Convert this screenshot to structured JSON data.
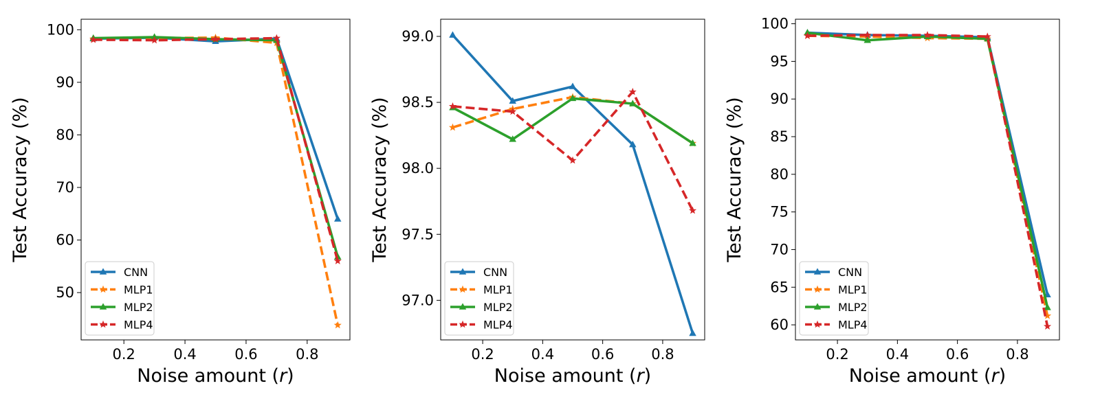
{
  "chart_data": [
    {
      "type": "line",
      "xlabel": "Noise amount (r)",
      "ylabel": "Test Accuracy (%)",
      "xlim": [
        0.06,
        0.94
      ],
      "ylim": [
        41.0,
        102.0
      ],
      "xticks": [
        0.2,
        0.4,
        0.6,
        0.8
      ],
      "xtick_labels": [
        "0.2",
        "0.4",
        "0.6",
        "0.8"
      ],
      "yticks": [
        50,
        60,
        70,
        80,
        90,
        100
      ],
      "ytick_labels": [
        "50",
        "60",
        "70",
        "80",
        "90",
        "100"
      ],
      "x": [
        0.1,
        0.3,
        0.5,
        0.7,
        0.9
      ],
      "grid": false,
      "legend": "lower left",
      "series": [
        {
          "name": "CNN",
          "values": [
            98.3,
            98.5,
            97.8,
            98.3,
            64.0
          ],
          "color": "#1f77b4",
          "linestyle": "solid",
          "marker": "triangle"
        },
        {
          "name": "MLP1",
          "values": [
            98.3,
            98.4,
            98.5,
            97.5,
            43.8
          ],
          "color": "#ff7f0e",
          "linestyle": "dashed",
          "marker": "star"
        },
        {
          "name": "MLP2",
          "values": [
            98.4,
            98.6,
            98.2,
            98.0,
            56.8
          ],
          "color": "#2ca02c",
          "linestyle": "solid",
          "marker": "triangle"
        },
        {
          "name": "MLP4",
          "values": [
            98.1,
            98.0,
            98.2,
            98.4,
            56.0
          ],
          "color": "#d62728",
          "linestyle": "dashed",
          "marker": "star"
        }
      ]
    },
    {
      "type": "line",
      "xlabel": "Noise amount (r)",
      "ylabel": "Test Accuracy (%)",
      "xlim": [
        0.06,
        0.94
      ],
      "ylim": [
        96.7,
        99.13
      ],
      "xticks": [
        0.2,
        0.4,
        0.6,
        0.8
      ],
      "xtick_labels": [
        "0.2",
        "0.4",
        "0.6",
        "0.8"
      ],
      "yticks": [
        97.0,
        97.5,
        98.0,
        98.5,
        99.0
      ],
      "ytick_labels": [
        "97.0",
        "97.5",
        "98.0",
        "98.5",
        "99.0"
      ],
      "x": [
        0.1,
        0.3,
        0.5,
        0.7,
        0.9
      ],
      "grid": false,
      "legend": "lower left",
      "series": [
        {
          "name": "CNN",
          "values": [
            99.01,
            98.51,
            98.62,
            98.18,
            96.75
          ],
          "color": "#1f77b4",
          "linestyle": "solid",
          "marker": "triangle"
        },
        {
          "name": "MLP1",
          "values": [
            98.31,
            98.45,
            98.54,
            98.49,
            98.19
          ],
          "color": "#ff7f0e",
          "linestyle": "dashed",
          "marker": "star"
        },
        {
          "name": "MLP2",
          "values": [
            98.46,
            98.22,
            98.53,
            98.49,
            98.19
          ],
          "color": "#2ca02c",
          "linestyle": "solid",
          "marker": "triangle"
        },
        {
          "name": "MLP4",
          "values": [
            98.47,
            98.43,
            98.06,
            98.58,
            97.68
          ],
          "color": "#d62728",
          "linestyle": "dashed",
          "marker": "star"
        }
      ]
    },
    {
      "type": "line",
      "xlabel": "Noise amount (r)",
      "ylabel": "Test Accuracy (%)",
      "xlim": [
        0.06,
        0.94
      ],
      "ylim": [
        58.0,
        100.6
      ],
      "xticks": [
        0.2,
        0.4,
        0.6,
        0.8
      ],
      "xtick_labels": [
        "0.2",
        "0.4",
        "0.6",
        "0.8"
      ],
      "yticks": [
        60,
        65,
        70,
        75,
        80,
        85,
        90,
        95,
        100
      ],
      "ytick_labels": [
        "60",
        "65",
        "70",
        "75",
        "80",
        "85",
        "90",
        "95",
        "100"
      ],
      "x": [
        0.1,
        0.3,
        0.5,
        0.7,
        0.9
      ],
      "grid": false,
      "legend": "lower left",
      "series": [
        {
          "name": "CNN",
          "values": [
            98.8,
            98.5,
            98.4,
            98.2,
            64.0
          ],
          "color": "#1f77b4",
          "linestyle": "solid",
          "marker": "triangle"
        },
        {
          "name": "MLP1",
          "values": [
            98.4,
            98.3,
            98.1,
            98.0,
            61.2
          ],
          "color": "#ff7f0e",
          "linestyle": "dashed",
          "marker": "star"
        },
        {
          "name": "MLP2",
          "values": [
            98.8,
            97.8,
            98.3,
            98.0,
            62.3
          ],
          "color": "#2ca02c",
          "linestyle": "solid",
          "marker": "triangle"
        },
        {
          "name": "MLP4",
          "values": [
            98.4,
            98.5,
            98.5,
            98.3,
            59.8
          ],
          "color": "#d62728",
          "linestyle": "dashed",
          "marker": "star"
        }
      ]
    }
  ]
}
